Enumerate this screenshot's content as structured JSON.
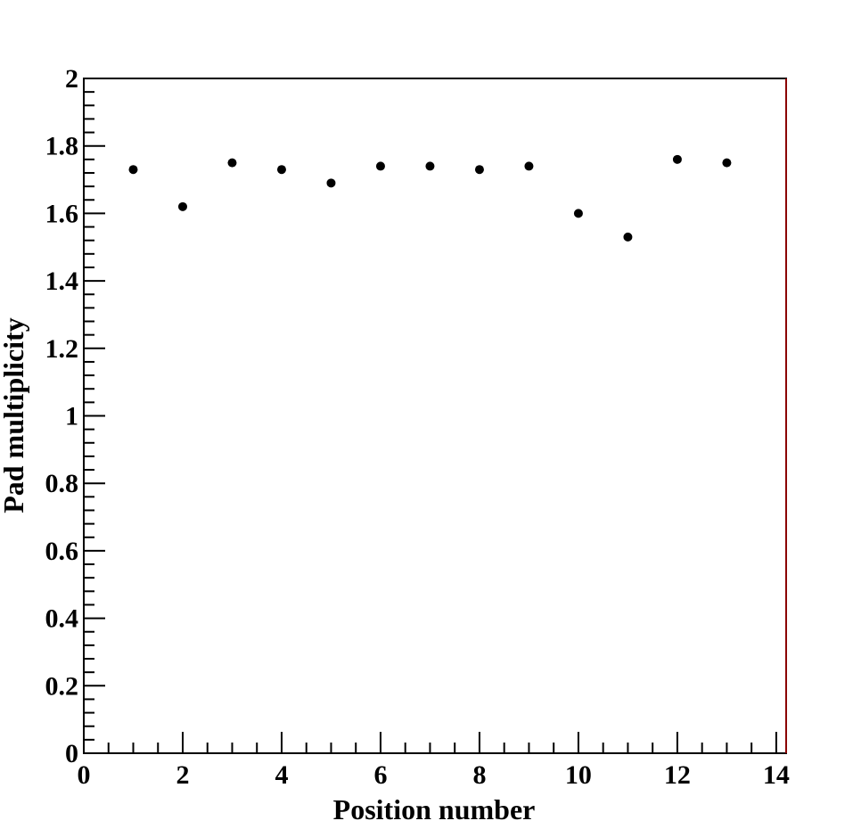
{
  "chart_data": {
    "type": "scatter",
    "title": "",
    "xlabel": "Position number",
    "ylabel": "Pad multiplicity",
    "xlim": [
      0,
      14.2
    ],
    "ylim": [
      0,
      2
    ],
    "grid": false,
    "x_tick_labels": [
      "0",
      "2",
      "4",
      "6",
      "8",
      "10",
      "12",
      "14"
    ],
    "y_tick_labels": [
      "0",
      "0.2",
      "0.4",
      "0.6",
      "0.8",
      "1",
      "1.2",
      "1.4",
      "1.6",
      "1.8",
      "2"
    ],
    "series": [
      {
        "x": [
          1,
          2,
          3,
          4,
          5,
          6,
          7,
          8,
          9,
          10,
          11,
          12,
          13
        ],
        "y": [
          1.73,
          1.62,
          1.75,
          1.73,
          1.69,
          1.74,
          1.74,
          1.73,
          1.74,
          1.6,
          1.53,
          1.76,
          1.75
        ]
      }
    ],
    "colors": {
      "marker": "#000000",
      "frame": "#000000",
      "right_edge": "#8b0000"
    }
  }
}
